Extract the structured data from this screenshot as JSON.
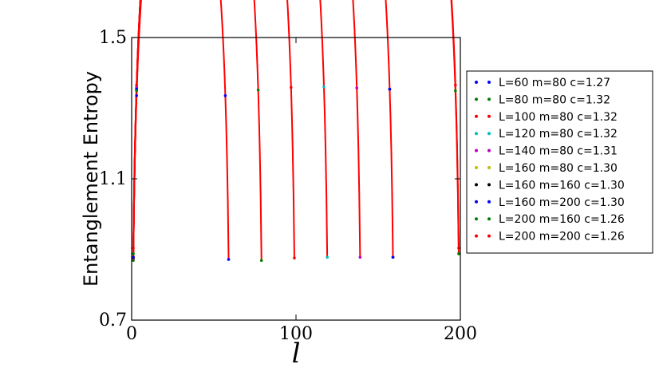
{
  "chart_data": {
    "type": "scatter",
    "xlabel": "l",
    "ylabel": "Entanglement Entropy",
    "xlim": [
      0,
      200
    ],
    "ylim": [
      0.7,
      1.5
    ],
    "xticks": [
      "0",
      "100",
      "200"
    ],
    "yticks": [
      "0.7",
      "1.1",
      "1.5"
    ],
    "grid": false,
    "legend_position": "right",
    "fit_color": "#ff0000",
    "series": [
      {
        "name": "L=60 m=80 c=1.27",
        "color": "#0000ff",
        "L": 60,
        "c": 1.27,
        "offset": 0.872
      },
      {
        "name": "L=80 m=80 c=1.32",
        "color": "#008000",
        "L": 80,
        "c": 1.32,
        "offset": 0.869
      },
      {
        "name": "L=100 m=80 c=1.32",
        "color": "#ff0000",
        "L": 100,
        "c": 1.32,
        "offset": 0.876
      },
      {
        "name": "L=120 m=80 c=1.32",
        "color": "#00bfbf",
        "L": 120,
        "c": 1.32,
        "offset": 0.878
      },
      {
        "name": "L=140 m=80 c=1.31",
        "color": "#bf00bf",
        "L": 140,
        "c": 1.31,
        "offset": 0.878
      },
      {
        "name": "L=160 m=80 c=1.30",
        "color": "#bfbf00",
        "L": 160,
        "c": 1.3,
        "offset": 0.878
      },
      {
        "name": "L=160 m=160 c=1.30",
        "color": "#000000",
        "L": 160,
        "c": 1.3,
        "offset": 0.878
      },
      {
        "name": "L=160 m=200 c=1.30",
        "color": "#0000ff",
        "L": 160,
        "c": 1.3,
        "offset": 0.878
      },
      {
        "name": "L=200 m=160 c=1.26",
        "color": "#008000",
        "L": 200,
        "c": 1.26,
        "offset": 0.888
      },
      {
        "name": "L=200 m=200 c=1.26",
        "color": "#ff0000",
        "L": 200,
        "c": 1.26,
        "offset": 0.904
      }
    ]
  }
}
